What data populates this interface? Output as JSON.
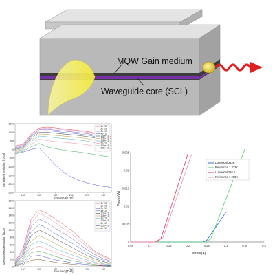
{
  "diagram": {
    "gain_label": "MQW Gain medium",
    "core_label": "Waveguide core (SCL)",
    "colors": {
      "block_top": "#e2e2e2",
      "block_front": "#b9b9b9",
      "block_side": "#a2a2a2",
      "core": "#7732a9",
      "beam": "#f4ee52",
      "wave": "#e02020"
    }
  },
  "chart_data": [
    {
      "type": "line",
      "ylabel": "stimulated emission [1/cm]",
      "xlabel": "frequency[THz]",
      "xlim": [
        130,
        250
      ],
      "ylim": [
        -2500,
        1500
      ],
      "xticks": [
        "140",
        "160",
        "180",
        "200",
        "220",
        "240"
      ],
      "yticks": [
        "1500",
        "1000",
        "500",
        "0",
        "-500",
        "-1000",
        "-1500",
        "-2000",
        "-2500"
      ],
      "legend": [
        "1e+19",
        "2e+19",
        "3e+19",
        "4e+19",
        "1.5e+19",
        "1.5e+19",
        "2.5e+19",
        "2e+19",
        "3.5e+19",
        "3.5e+19"
      ],
      "series_colors": [
        "#e03a3a",
        "#e08fbf",
        "#7a4fc0",
        "#3a7adf",
        "#444444",
        "#c0a030",
        "#50b0d0",
        "#f28ab0",
        "#30b050",
        "#5050e0"
      ],
      "series": [
        {
          "x": [
            130,
            140,
            150,
            160,
            170,
            180,
            190,
            200,
            210,
            220,
            230,
            240,
            250
          ],
          "values": [
            200,
            300,
            900,
            1250,
            1300,
            1260,
            1200,
            1150,
            1100,
            1050,
            950,
            850,
            750
          ]
        },
        {
          "x": [
            130,
            140,
            150,
            160,
            170,
            180,
            190,
            200,
            210,
            220,
            230,
            240,
            250
          ],
          "values": [
            150,
            250,
            850,
            1200,
            1250,
            1200,
            1150,
            1100,
            1050,
            1000,
            900,
            800,
            700
          ]
        },
        {
          "x": [
            130,
            140,
            150,
            160,
            170,
            180,
            190,
            200,
            210,
            220,
            230,
            240,
            250
          ],
          "values": [
            100,
            200,
            800,
            1150,
            1180,
            1130,
            1080,
            1030,
            980,
            920,
            830,
            730,
            630
          ]
        },
        {
          "x": [
            130,
            140,
            150,
            160,
            170,
            180,
            190,
            200,
            210,
            220,
            230,
            240,
            250
          ],
          "values": [
            50,
            150,
            750,
            1080,
            1100,
            1050,
            1000,
            950,
            900,
            840,
            750,
            650,
            550
          ]
        },
        {
          "x": [
            130,
            140,
            150,
            160,
            170,
            180,
            190,
            200,
            210,
            220,
            230,
            240,
            250
          ],
          "values": [
            0,
            100,
            650,
            1000,
            1000,
            950,
            900,
            860,
            810,
            750,
            660,
            560,
            460
          ]
        },
        {
          "x": [
            130,
            140,
            150,
            160,
            170,
            180,
            190,
            200,
            210,
            220,
            230,
            240,
            250
          ],
          "values": [
            -50,
            50,
            550,
            900,
            880,
            820,
            780,
            740,
            690,
            630,
            540,
            450,
            350
          ]
        },
        {
          "x": [
            130,
            140,
            150,
            160,
            170,
            180,
            190,
            200,
            210,
            220,
            230,
            240,
            250
          ],
          "values": [
            -100,
            0,
            450,
            780,
            740,
            680,
            640,
            600,
            550,
            490,
            400,
            310,
            220
          ]
        },
        {
          "x": [
            130,
            140,
            150,
            160,
            170,
            180,
            190,
            200,
            210,
            220,
            230,
            240,
            250
          ],
          "values": [
            -150,
            -50,
            300,
            600,
            520,
            460,
            420,
            380,
            330,
            270,
            190,
            100,
            20
          ]
        },
        {
          "x": [
            130,
            140,
            150,
            160,
            170,
            180,
            190,
            200,
            210,
            220,
            230,
            240,
            250
          ],
          "values": [
            -200,
            -100,
            150,
            350,
            150,
            50,
            -30,
            -100,
            -150,
            -220,
            -300,
            -380,
            -450
          ]
        },
        {
          "x": [
            130,
            140,
            150,
            160,
            170,
            180,
            190,
            200,
            210,
            220,
            230,
            240,
            250
          ],
          "values": [
            -250,
            -150,
            0,
            100,
            -400,
            -900,
            -1300,
            -1600,
            -1800,
            -1950,
            -2050,
            -2150,
            -2200
          ]
        }
      ]
    },
    {
      "type": "line",
      "ylabel": "spontaneous emission [1/cm]",
      "xlabel": "frequency[THz]",
      "xlim": [
        130,
        250
      ],
      "ylim": [
        0,
        1800
      ],
      "xticks": [
        "140",
        "160",
        "180",
        "200",
        "220",
        "240"
      ],
      "yticks": [
        "1800",
        "1600",
        "1400",
        "1200",
        "1000",
        "800",
        "600",
        "400",
        "200",
        "0"
      ],
      "legend": [
        "1e+19",
        "2e+19",
        "3e+19",
        "4e+19",
        "1.2e+19",
        "1.5e+19",
        "2e+19",
        "2.5e+19",
        "3e+19",
        "3.5e+19",
        "4e+19"
      ],
      "series_colors": [
        "#e03a3a",
        "#e08fbf",
        "#7a4fc0",
        "#3a7adf",
        "#444444",
        "#c0a030",
        "#50b0d0",
        "#f28ab0",
        "#30b050",
        "#5050e0",
        "#8a5a2a"
      ],
      "series": [
        {
          "x": [
            130,
            140,
            150,
            160,
            170,
            180,
            190,
            200,
            210,
            220,
            230,
            240,
            250
          ],
          "values": [
            150,
            500,
            1300,
            1550,
            1450,
            1300,
            1150,
            1000,
            800,
            600,
            420,
            300,
            200
          ]
        },
        {
          "x": [
            130,
            140,
            150,
            160,
            170,
            180,
            190,
            200,
            210,
            220,
            230,
            240,
            250
          ],
          "values": [
            130,
            450,
            1200,
            1450,
            1350,
            1200,
            1050,
            900,
            720,
            540,
            380,
            270,
            180
          ]
        },
        {
          "x": [
            130,
            140,
            150,
            160,
            170,
            180,
            190,
            200,
            210,
            220,
            230,
            240,
            250
          ],
          "values": [
            110,
            400,
            1100,
            1300,
            1200,
            1050,
            920,
            780,
            620,
            460,
            320,
            220,
            150
          ]
        },
        {
          "x": [
            130,
            140,
            150,
            160,
            170,
            180,
            190,
            200,
            210,
            220,
            230,
            240,
            250
          ],
          "values": [
            90,
            350,
            950,
            1150,
            1050,
            900,
            780,
            650,
            520,
            380,
            260,
            180,
            120
          ]
        },
        {
          "x": [
            130,
            140,
            150,
            160,
            170,
            180,
            190,
            200,
            210,
            220,
            230,
            240,
            250
          ],
          "values": [
            80,
            300,
            850,
            1000,
            900,
            770,
            650,
            540,
            420,
            300,
            210,
            140,
            90
          ]
        },
        {
          "x": [
            130,
            140,
            150,
            160,
            170,
            180,
            190,
            200,
            210,
            220,
            230,
            240,
            250
          ],
          "values": [
            70,
            250,
            700,
            850,
            750,
            630,
            520,
            420,
            330,
            240,
            160,
            110,
            70
          ]
        },
        {
          "x": [
            130,
            140,
            150,
            160,
            170,
            180,
            190,
            200,
            210,
            220,
            230,
            240,
            250
          ],
          "values": [
            60,
            200,
            600,
            700,
            610,
            500,
            410,
            330,
            250,
            180,
            120,
            80,
            50
          ]
        },
        {
          "x": [
            130,
            140,
            150,
            160,
            170,
            180,
            190,
            200,
            210,
            220,
            230,
            240,
            250
          ],
          "values": [
            50,
            160,
            480,
            560,
            480,
            390,
            310,
            240,
            180,
            130,
            90,
            60,
            40
          ]
        },
        {
          "x": [
            130,
            140,
            150,
            160,
            170,
            180,
            190,
            200,
            210,
            220,
            230,
            240,
            250
          ],
          "values": [
            40,
            120,
            380,
            430,
            360,
            280,
            220,
            170,
            130,
            90,
            60,
            40,
            30
          ]
        },
        {
          "x": [
            130,
            140,
            150,
            160,
            170,
            180,
            190,
            200,
            210,
            220,
            230,
            240,
            250
          ],
          "values": [
            30,
            90,
            280,
            310,
            250,
            190,
            150,
            110,
            80,
            60,
            40,
            30,
            20
          ]
        },
        {
          "x": [
            130,
            140,
            150,
            160,
            170,
            180,
            190,
            200,
            210,
            220,
            230,
            240,
            250
          ],
          "values": [
            20,
            60,
            180,
            200,
            160,
            120,
            90,
            70,
            50,
            40,
            30,
            20,
            10
          ]
        }
      ]
    },
    {
      "type": "line",
      "xlabel": "Current(A)",
      "ylabel": "Power(W)",
      "xlim": [
        0.05,
        0.4
      ],
      "ylim": [
        0,
        0.025
      ],
      "xticks": [
        "0.05",
        "0.1",
        "0.15",
        "0.2",
        "0.25",
        "0.3",
        "0.35",
        "0.4"
      ],
      "yticks": [
        "0.025",
        "0.02",
        "0.015",
        "0.01",
        "0.005",
        "0"
      ],
      "legend": [
        "Lumerical 333K",
        "Reference 1 333K",
        "Lumerical 293 K",
        "Reference 1 293K"
      ],
      "series_colors": [
        "#3b6fd6",
        "#4fd06a",
        "#e0304a",
        "#f088b8"
      ],
      "series": [
        {
          "name": "Lumerical 333K",
          "x": [
            0.05,
            0.24,
            0.25,
            0.3
          ],
          "values": [
            0,
            0,
            0.0005,
            0.0083
          ]
        },
        {
          "name": "Reference 1 333K",
          "x": [
            0.05,
            0.245,
            0.26,
            0.35
          ],
          "values": [
            0,
            0,
            0.0008,
            0.026
          ]
        },
        {
          "name": "Lumerical 293 K",
          "x": [
            0.05,
            0.115,
            0.13,
            0.2
          ],
          "values": [
            0,
            0,
            0.001,
            0.0245
          ]
        },
        {
          "name": "Reference 1 293K",
          "x": [
            0.05,
            0.118,
            0.135,
            0.21
          ],
          "values": [
            0,
            0,
            0.0012,
            0.0245
          ]
        }
      ]
    }
  ]
}
